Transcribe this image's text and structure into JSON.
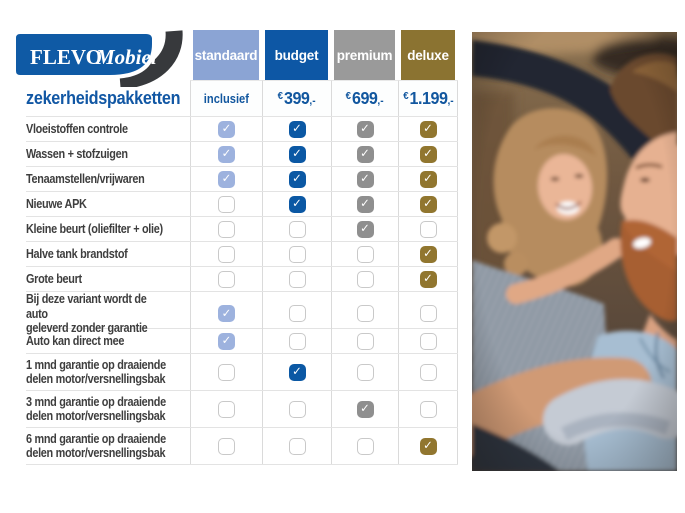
{
  "brand": {
    "primary": "FLEVO",
    "secondary": "Mobiel"
  },
  "title": "zekerheidspakketten",
  "table": {
    "checkmark_glyph": "✓",
    "packages": [
      {
        "name": "standaard",
        "price": {
          "text": "inclusief"
        },
        "colors": {
          "header": "#8ba4d4",
          "check": "#9db2de"
        }
      },
      {
        "name": "budget",
        "price": {
          "currency": "€",
          "amount": "399",
          "suffix": ",-"
        },
        "colors": {
          "header": "#0d57a5",
          "check": "#0b58a4"
        }
      },
      {
        "name": "premium",
        "price": {
          "currency": "€",
          "amount": "699",
          "suffix": ",-"
        },
        "colors": {
          "header": "#9a9a9a",
          "check": "#8f8f8f"
        }
      },
      {
        "name": "deluxe",
        "price": {
          "currency": "€",
          "amount": "1.199",
          "suffix": ",-"
        },
        "colors": {
          "header": "#8b7331",
          "check": "#91762f"
        }
      }
    ],
    "features": [
      {
        "label": "Vloeistoffen controle",
        "checks": [
          true,
          true,
          true,
          true
        ]
      },
      {
        "label": "Wassen + stofzuigen",
        "checks": [
          true,
          true,
          true,
          true
        ]
      },
      {
        "label": "Tenaamstellen/vrijwaren",
        "checks": [
          true,
          true,
          true,
          true
        ]
      },
      {
        "label": "Nieuwe APK",
        "checks": [
          false,
          true,
          true,
          true
        ]
      },
      {
        "label": "Kleine beurt (oliefilter + olie)",
        "checks": [
          false,
          false,
          true,
          false
        ]
      },
      {
        "label": "Halve tank brandstof",
        "checks": [
          false,
          false,
          false,
          true
        ]
      },
      {
        "label": "Grote beurt",
        "checks": [
          false,
          false,
          false,
          true
        ]
      },
      {
        "label": "Bij deze variant wordt de auto\ngeleverd zonder garantie",
        "checks": [
          true,
          false,
          false,
          false
        ]
      },
      {
        "label": "Auto kan direct mee",
        "checks": [
          true,
          false,
          false,
          false
        ]
      },
      {
        "label": "1 mnd garantie op draaiende\ndelen motor/versnellingsbak",
        "checks": [
          false,
          true,
          false,
          false
        ]
      },
      {
        "label": "3 mnd garantie op draaiende\ndelen motor/versnellingsbak",
        "checks": [
          false,
          false,
          true,
          false
        ]
      },
      {
        "label": "6 mnd garantie op draaiende\ndelen motor/versnellingsbak",
        "checks": [
          false,
          false,
          false,
          true
        ]
      }
    ]
  },
  "colors": {
    "accent_blue": "#0f5aa5",
    "logo_swoosh": "#37393c",
    "label_text": "#3e3e3e",
    "grid_line": "#dadada",
    "row_line": "#e3e3e3",
    "checkbox_border": "#c9c9c9"
  }
}
